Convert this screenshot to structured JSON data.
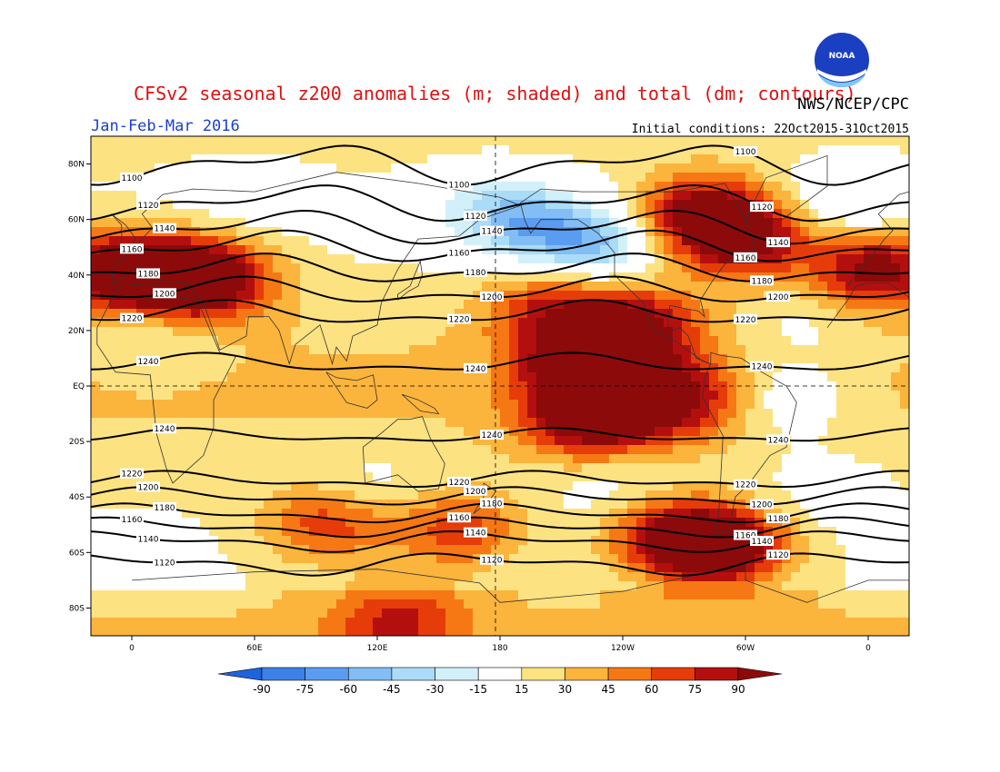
{
  "header": {
    "title": "CFSv2 seasonal z200 anomalies (m; shaded) and total (dm; contours)",
    "period": "Jan-Feb-Mar 2016",
    "org": "NWS/NCEP/CPC",
    "init": "Initial conditions: 22Oct2015-31Oct2015",
    "logo_text": "NOAA"
  },
  "axes": {
    "lat_labels": [
      "80N",
      "60N",
      "40N",
      "20N",
      "EQ",
      "20S",
      "40S",
      "60S",
      "80S"
    ],
    "lon_labels": [
      "0",
      "60E",
      "120E",
      "180",
      "120W",
      "60W",
      "0"
    ]
  },
  "colorbar": {
    "labels": [
      "-90",
      "-75",
      "-60",
      "-45",
      "-30",
      "-15",
      "15",
      "30",
      "45",
      "60",
      "75",
      "90"
    ],
    "colors": [
      "#1e64dc",
      "#3c82e6",
      "#5a9cf0",
      "#82bef5",
      "#aadcf8",
      "#d2f0fa",
      "#ffffff",
      "#fde282",
      "#fbb43c",
      "#f67814",
      "#e63c0a",
      "#b40f0f",
      "#8c0a0a"
    ]
  },
  "chart_data": {
    "type": "heatmap",
    "variable": "z200",
    "lat_range": [
      -90,
      90
    ],
    "lon_range": [
      -20,
      380
    ],
    "contours": [
      {
        "value": 1100,
        "lat": 80
      },
      {
        "value": 1120,
        "lat": 66
      },
      {
        "value": 1140,
        "lat": 57
      },
      {
        "value": 1160,
        "lat": 50
      },
      {
        "value": 1180,
        "lat": 42
      },
      {
        "value": 1200,
        "lat": 34
      },
      {
        "value": 1220,
        "lat": 26
      },
      {
        "value": 1240,
        "lat": 8
      },
      {
        "value": 1240,
        "lat": -18
      },
      {
        "value": 1220,
        "lat": -34
      },
      {
        "value": 1200,
        "lat": -40
      },
      {
        "value": 1180,
        "lat": -46
      },
      {
        "value": 1160,
        "lat": -51
      },
      {
        "value": 1140,
        "lat": -56
      },
      {
        "value": 1120,
        "lat": -64
      }
    ],
    "anomaly_centers": [
      {
        "lon": -10,
        "lat": 42,
        "value": 80
      },
      {
        "lon": 20,
        "lat": 40,
        "value": 80
      },
      {
        "lon": 40,
        "lat": 38,
        "value": 65
      },
      {
        "lon": 365,
        "lat": 42,
        "value": 85
      },
      {
        "lon": 280,
        "lat": 62,
        "value": 90
      },
      {
        "lon": 300,
        "lat": 52,
        "value": 75
      },
      {
        "lon": 245,
        "lat": 22,
        "value": 75
      },
      {
        "lon": 235,
        "lat": 0,
        "value": 70
      },
      {
        "lon": 225,
        "lat": -12,
        "value": 80
      },
      {
        "lon": 215,
        "lat": 10,
        "value": 55
      },
      {
        "lon": 270,
        "lat": -5,
        "value": 55
      },
      {
        "lon": 205,
        "lat": 30,
        "value": 50
      },
      {
        "lon": 290,
        "lat": -58,
        "value": 90
      },
      {
        "lon": 265,
        "lat": -55,
        "value": 75
      },
      {
        "lon": 95,
        "lat": -50,
        "value": 55
      },
      {
        "lon": 160,
        "lat": -52,
        "value": 55
      },
      {
        "lon": 130,
        "lat": -85,
        "value": 50
      },
      {
        "lon": 195,
        "lat": 58,
        "value": -45
      },
      {
        "lon": 225,
        "lat": 50,
        "value": -60
      },
      {
        "lon": 175,
        "lat": 65,
        "value": -30
      },
      {
        "lon": 355,
        "lat": 68,
        "value": -30
      },
      {
        "lon": 320,
        "lat": -5,
        "value": -30
      },
      {
        "lon": 55,
        "lat": 70,
        "value": -12
      },
      {
        "lon": 10,
        "lat": 18,
        "value": -20
      },
      {
        "lon": 330,
        "lat": 22,
        "value": -15
      },
      {
        "lon": 115,
        "lat": -35,
        "value": -15
      },
      {
        "lon": 235,
        "lat": -35,
        "value": -15
      },
      {
        "lon": 340,
        "lat": -35,
        "value": -15
      }
    ]
  }
}
